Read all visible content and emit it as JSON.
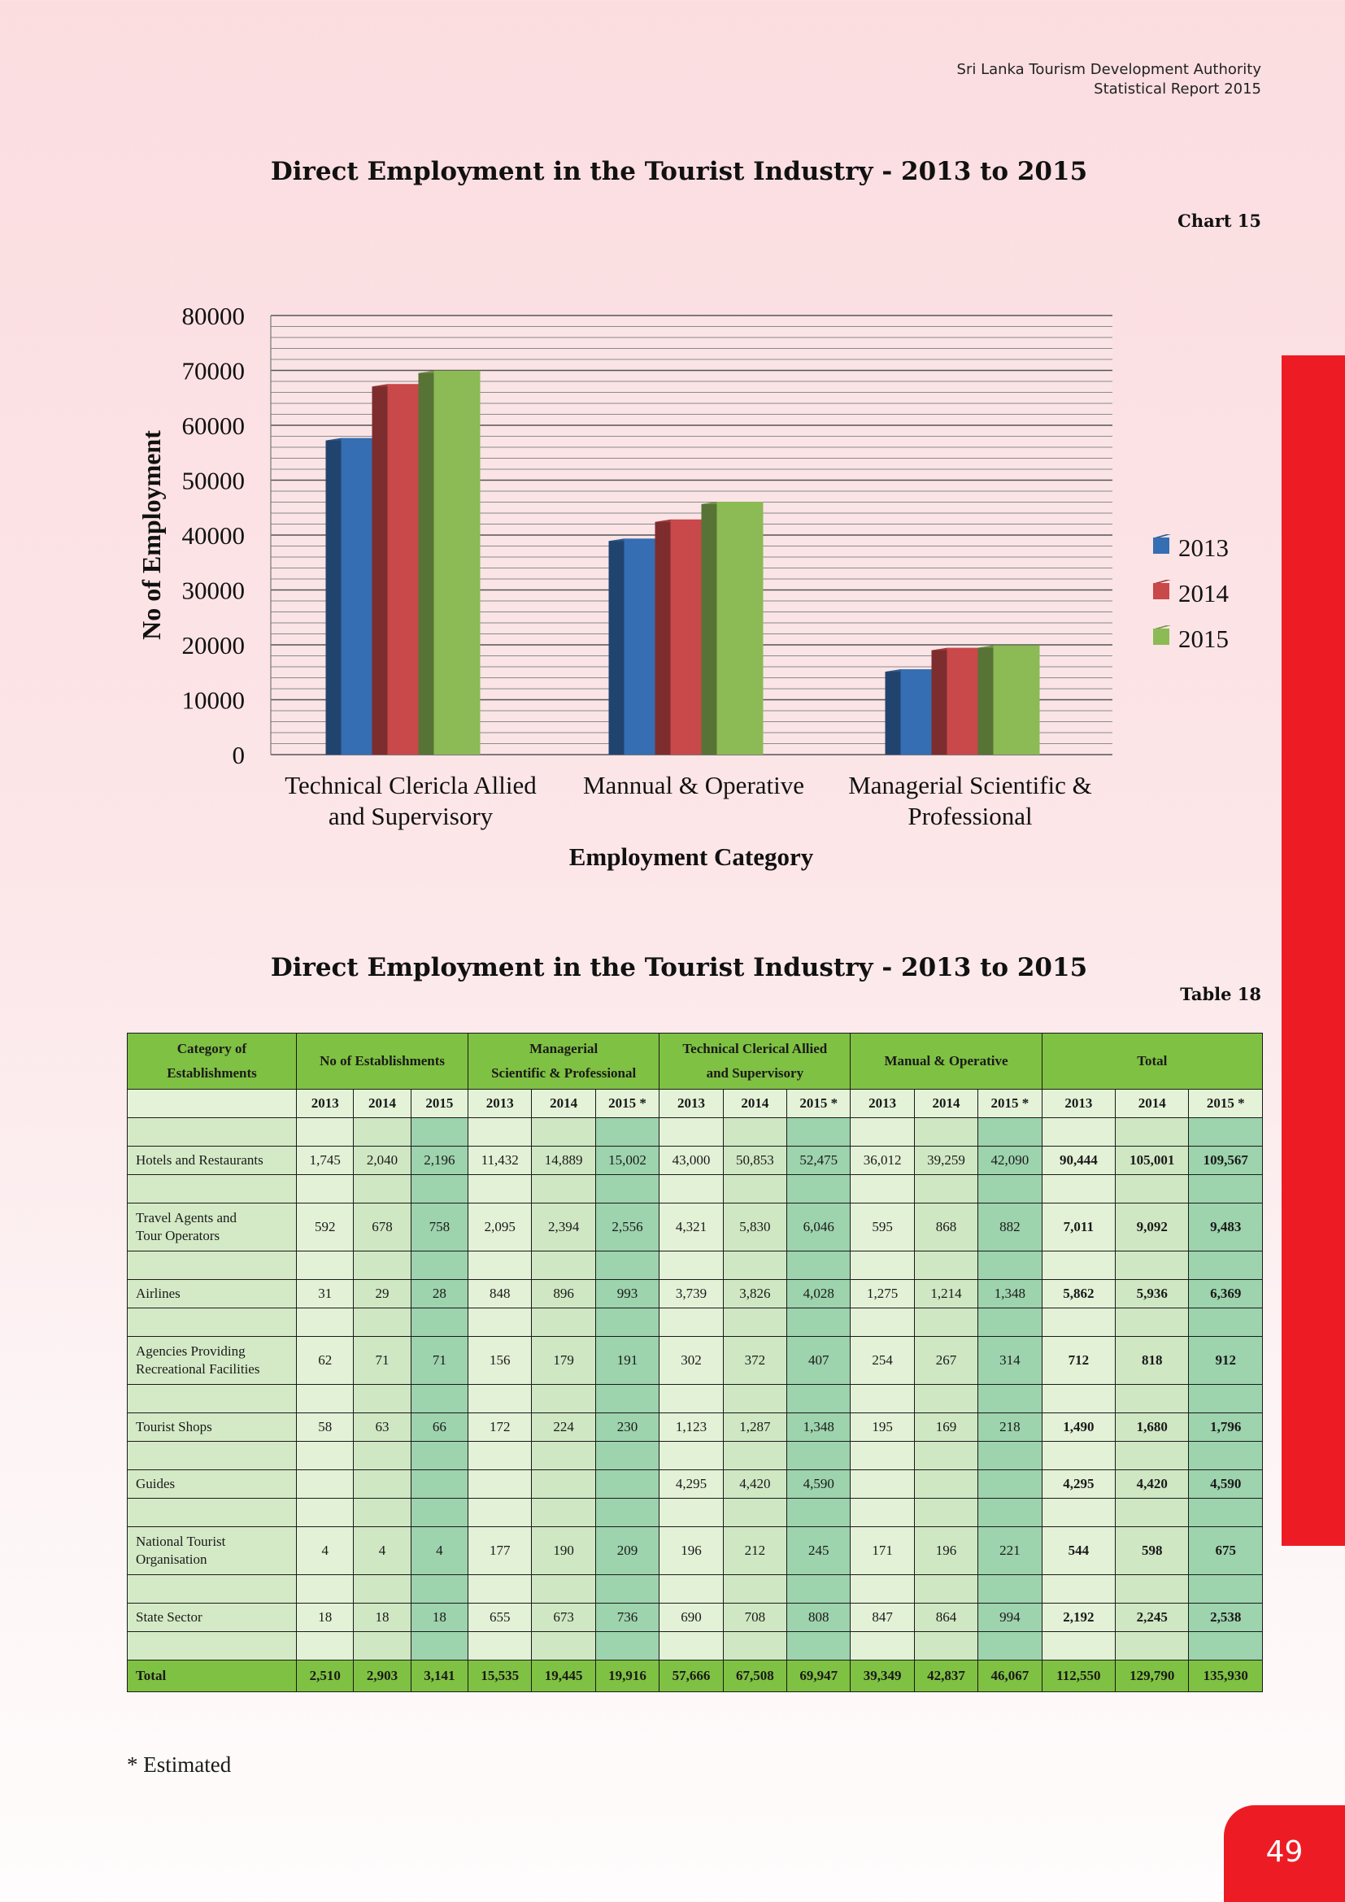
{
  "header": {
    "org_line1": "Sri Lanka Tourism Development Authority",
    "org_line2": "Statistical Report 2015"
  },
  "chart_section": {
    "title": "Direct Employment in the Tourist Industry - 2013 to 2015",
    "ref": "Chart 15"
  },
  "chart_data": {
    "type": "bar",
    "categories": [
      [
        "Technical Clericla Allied",
        "and Supervisory"
      ],
      [
        "Mannual & Operative"
      ],
      [
        "Managerial Scientific &",
        "Professional"
      ]
    ],
    "series": [
      {
        "name": "2013",
        "color": "#356eb3",
        "values": [
          57666,
          39349,
          15535
        ]
      },
      {
        "name": "2014",
        "color": "#c9484a",
        "values": [
          67508,
          42837,
          19445
        ]
      },
      {
        "name": "2015",
        "color": "#8cba55",
        "values": [
          69947,
          46067,
          19916
        ]
      }
    ],
    "xlabel": "Employment Category",
    "ylabel": "No of Employment",
    "ylim": [
      0,
      80000
    ],
    "yticks": [
      "0",
      "10000",
      "20000",
      "30000",
      "40000",
      "50000",
      "60000",
      "70000",
      "80000"
    ],
    "grid": true,
    "legend_position": "right"
  },
  "table_section": {
    "title": "Direct Employment in the Tourist Industry - 2013 to 2015",
    "ref": "Table 18"
  },
  "table": {
    "groups": [
      [
        "Category of",
        "Establishments"
      ],
      [
        "No of Establishments"
      ],
      [
        "Managerial",
        "Scientific & Professional"
      ],
      [
        "Technical Clerical Allied",
        "and Supervisory"
      ],
      [
        "Manual & Operative"
      ],
      [
        "Total"
      ]
    ],
    "years": [
      "2013",
      "2014",
      "2015",
      "2013",
      "2014",
      "2015 *",
      "2013",
      "2014",
      "2015 *",
      "2013",
      "2014",
      "2015 *",
      "2013",
      "2014",
      "2015 *"
    ],
    "rows": [
      {
        "category": [
          "Hotels and Restaurants"
        ],
        "values": [
          "1,745",
          "2,040",
          "2,196",
          "11,432",
          "14,889",
          "15,002",
          "43,000",
          "50,853",
          "52,475",
          "36,012",
          "39,259",
          "42,090",
          "90,444",
          "105,001",
          "109,567"
        ]
      },
      {
        "category": [
          "Travel Agents and",
          "Tour Operators"
        ],
        "values": [
          "592",
          "678",
          "758",
          "2,095",
          "2,394",
          "2,556",
          "4,321",
          "5,830",
          "6,046",
          "595",
          "868",
          "882",
          "7,011",
          "9,092",
          "9,483"
        ]
      },
      {
        "category": [
          "Airlines"
        ],
        "values": [
          "31",
          "29",
          "28",
          "848",
          "896",
          "993",
          "3,739",
          "3,826",
          "4,028",
          "1,275",
          "1,214",
          "1,348",
          "5,862",
          "5,936",
          "6,369"
        ]
      },
      {
        "category": [
          "Agencies Providing",
          "Recreational Facilities"
        ],
        "values": [
          "62",
          "71",
          "71",
          "156",
          "179",
          "191",
          "302",
          "372",
          "407",
          "254",
          "267",
          "314",
          "712",
          "818",
          "912"
        ]
      },
      {
        "category": [
          "Tourist Shops"
        ],
        "values": [
          "58",
          "63",
          "66",
          "172",
          "224",
          "230",
          "1,123",
          "1,287",
          "1,348",
          "195",
          "169",
          "218",
          "1,490",
          "1,680",
          "1,796"
        ]
      },
      {
        "category": [
          "Guides"
        ],
        "values": [
          "",
          "",
          "",
          "",
          "",
          "",
          "4,295",
          "4,420",
          "4,590",
          "",
          "",
          "",
          "4,295",
          "4,420",
          "4,590"
        ]
      },
      {
        "category": [
          "National Tourist",
          "Organisation"
        ],
        "values": [
          "4",
          "4",
          "4",
          "177",
          "190",
          "209",
          "196",
          "212",
          "245",
          "171",
          "196",
          "221",
          "544",
          "598",
          "675"
        ]
      },
      {
        "category": [
          "State Sector"
        ],
        "values": [
          "18",
          "18",
          "18",
          "655",
          "673",
          "736",
          "690",
          "708",
          "808",
          "847",
          "864",
          "994",
          "2,192",
          "2,245",
          "2,538"
        ]
      }
    ],
    "total": {
      "label": "Total",
      "values": [
        "2,510",
        "2,903",
        "3,141",
        "15,535",
        "19,445",
        "19,916",
        "57,666",
        "67,508",
        "69,947",
        "39,349",
        "42,837",
        "46,067",
        "112,550",
        "129,790",
        "135,930"
      ]
    }
  },
  "footnote": "* Estimated",
  "page_number": "49"
}
